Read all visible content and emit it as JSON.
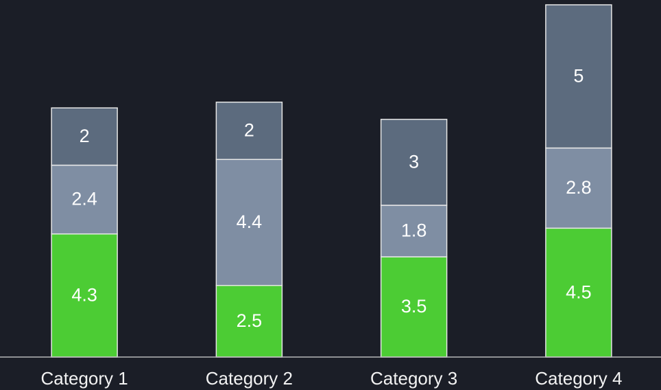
{
  "chart_data": {
    "type": "stacked_bar",
    "categories": [
      "Category 1",
      "Category 2",
      "Category 3",
      "Category 4"
    ],
    "series": [
      {
        "color": "#4ccc34",
        "values": [
          4.3,
          2.5,
          3.5,
          4.5
        ]
      },
      {
        "color": "#7f8ea3",
        "values": [
          2.4,
          4.4,
          1.8,
          2.8
        ]
      },
      {
        "color": "#5c6b7e",
        "values": [
          2,
          2,
          3,
          5
        ]
      }
    ],
    "ylim": [
      0,
      12.3
    ]
  }
}
